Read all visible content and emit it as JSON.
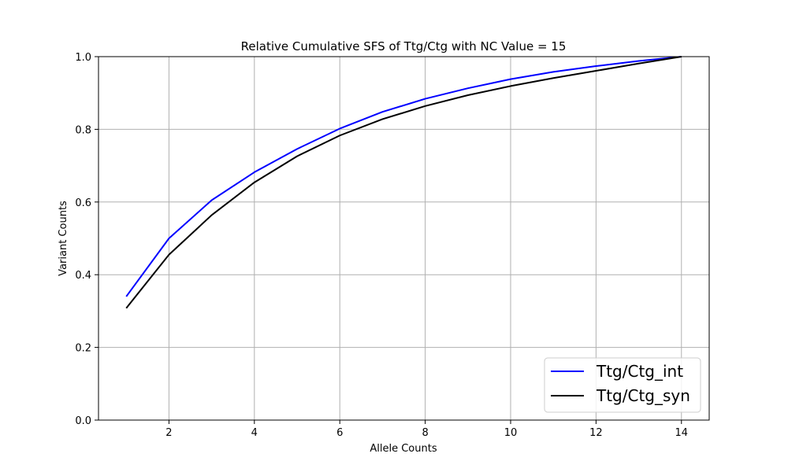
{
  "chart_data": {
    "type": "line",
    "title": "Relative Cumulative SFS of Ttg/Ctg with NC Value = 15",
    "xlabel": "Allele Counts",
    "ylabel": "Variant Counts",
    "x": [
      1,
      2,
      3,
      4,
      5,
      6,
      7,
      8,
      9,
      10,
      11,
      12,
      13,
      14
    ],
    "xlim": [
      0.35,
      14.65
    ],
    "ylim": [
      0.0,
      1.0
    ],
    "xticks": [
      "2",
      "4",
      "6",
      "8",
      "10",
      "12",
      "14"
    ],
    "yticks": [
      "0.0",
      "0.2",
      "0.4",
      "0.6",
      "0.8",
      "1.0"
    ],
    "grid": true,
    "legend_position": "lower-right",
    "series": [
      {
        "name": "Ttg/Ctg_int",
        "color": "#0000ff",
        "values": [
          0.34,
          0.5,
          0.605,
          0.682,
          0.746,
          0.802,
          0.848,
          0.884,
          0.913,
          0.938,
          0.958,
          0.974,
          0.988,
          1.0
        ]
      },
      {
        "name": "Ttg/Ctg_syn",
        "color": "#000000",
        "values": [
          0.308,
          0.455,
          0.564,
          0.654,
          0.726,
          0.783,
          0.828,
          0.864,
          0.894,
          0.919,
          0.941,
          0.961,
          0.981,
          1.0
        ]
      }
    ]
  }
}
